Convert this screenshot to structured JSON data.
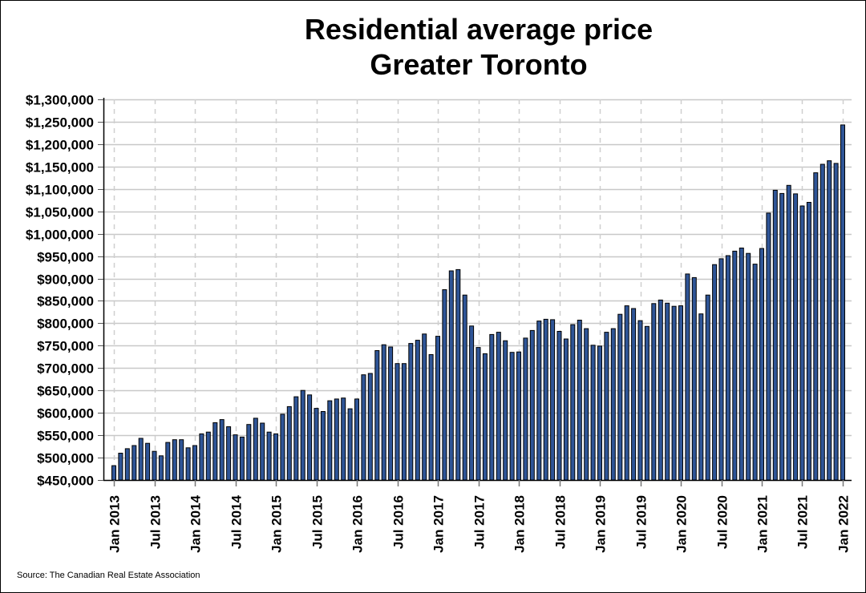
{
  "chart_data": {
    "type": "bar",
    "title": [
      "Residential average price",
      "Greater Toronto"
    ],
    "xlabel": "",
    "ylabel": "",
    "source": "Source: The Canadian Real Estate Association",
    "ylim": [
      450000,
      1300000
    ],
    "y_ticks": [
      450000,
      500000,
      550000,
      600000,
      650000,
      700000,
      750000,
      800000,
      850000,
      900000,
      950000,
      1000000,
      1050000,
      1100000,
      1150000,
      1200000,
      1250000,
      1300000
    ],
    "y_tick_labels": [
      "$450,000",
      "$500,000",
      "$550,000",
      "$600,000",
      "$650,000",
      "$700,000",
      "$750,000",
      "$800,000",
      "$850,000",
      "$900,000",
      "$950,000",
      "$1,000,000",
      "$1,050,000",
      "$1,100,000",
      "$1,150,000",
      "$1,200,000",
      "$1,250,000",
      "$1,300,000"
    ],
    "x_tick_labels": [
      "Jan 2013",
      "Jul 2013",
      "Jan 2014",
      "Jul 2014",
      "Jan 2015",
      "Jul 2015",
      "Jan 2016",
      "Jul 2016",
      "Jan 2017",
      "Jul 2017",
      "Jan 2018",
      "Jul 2018",
      "Jan 2019",
      "Jul 2019",
      "Jan 2020",
      "Jul 2020",
      "Jan 2021",
      "Jul 2021",
      "Jan 2022"
    ],
    "x_tick_every_months": 6,
    "grid": {
      "horizontal": "solid",
      "vertical": "dashed"
    },
    "bar_color": "#2f5597",
    "bar_edge_color": "#000000",
    "start": "Jan 2013",
    "frequency": "monthly",
    "values": [
      482000,
      510000,
      520000,
      527000,
      543000,
      532000,
      514000,
      504000,
      534000,
      540000,
      540000,
      522000,
      527000,
      553000,
      557000,
      578000,
      585000,
      569000,
      551000,
      546000,
      574000,
      588000,
      577000,
      557000,
      553000,
      597000,
      614000,
      636000,
      650000,
      640000,
      610000,
      603000,
      627000,
      631000,
      633000,
      609000,
      631000,
      685000,
      688000,
      739000,
      752000,
      747000,
      710000,
      710000,
      755000,
      762000,
      776000,
      730000,
      771000,
      875000,
      917000,
      920000,
      863000,
      794000,
      746000,
      732000,
      775000,
      780000,
      761000,
      735000,
      736000,
      767000,
      784000,
      805000,
      809000,
      808000,
      782000,
      765000,
      797000,
      807000,
      788000,
      751000,
      749000,
      780000,
      788000,
      820000,
      839000,
      833000,
      806000,
      793000,
      844000,
      852000,
      845000,
      838000,
      839000,
      910000,
      902000,
      821000,
      863000,
      931000,
      944000,
      951000,
      961000,
      968000,
      956000,
      932000,
      967000,
      1046000,
      1097000,
      1090000,
      1108000,
      1089000,
      1062000,
      1070000,
      1136000,
      1155000,
      1163000,
      1157000,
      1243000
    ]
  }
}
